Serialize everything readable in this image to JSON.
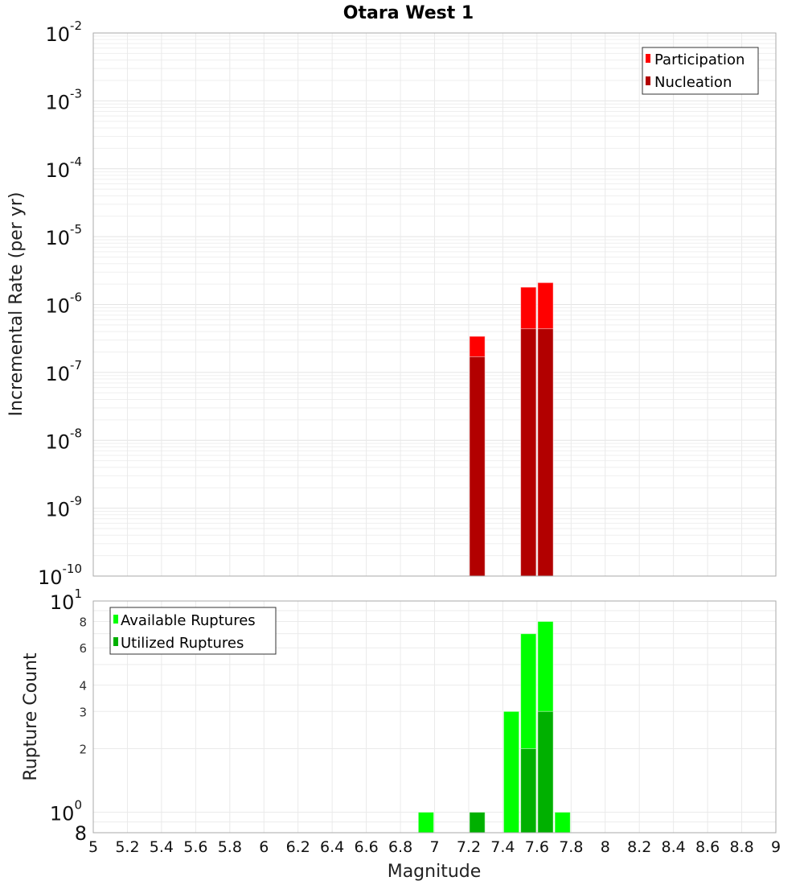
{
  "chart_data": [
    {
      "type": "bar",
      "title": "Otara West 1",
      "xlabel": "Magnitude",
      "ylabel": "Incremental Rate (per yr)",
      "yscale": "log",
      "ylim": [
        1e-10,
        0.01
      ],
      "xlim": [
        5,
        9
      ],
      "grid": true,
      "legend_position": "top-right",
      "bin_width": 0.1,
      "x": [
        7.25,
        7.55,
        7.65
      ],
      "series": [
        {
          "name": "Participation",
          "color": "#ff0000",
          "values": [
            3.4e-07,
            1.8e-06,
            2.1e-06
          ]
        },
        {
          "name": "Nucleation",
          "color": "#b20000",
          "values": [
            1.7e-07,
            4.4e-07,
            4.4e-07
          ]
        }
      ],
      "ytick_labels": [
        {
          "base": "10",
          "exp": "-2",
          "value": 0.01
        },
        {
          "base": "10",
          "exp": "-3",
          "value": 0.001
        },
        {
          "base": "10",
          "exp": "-4",
          "value": 0.0001
        },
        {
          "base": "10",
          "exp": "-5",
          "value": 1e-05
        },
        {
          "base": "10",
          "exp": "-6",
          "value": 1e-06
        },
        {
          "base": "10",
          "exp": "-7",
          "value": 1e-07
        },
        {
          "base": "10",
          "exp": "-8",
          "value": 1e-08
        },
        {
          "base": "10",
          "exp": "-9",
          "value": 1e-09
        },
        {
          "base": "10",
          "exp": "-10",
          "value": 1e-10
        }
      ]
    },
    {
      "type": "bar",
      "title": "",
      "xlabel": "Magnitude",
      "ylabel": "Rupture Count",
      "yscale": "log",
      "ylim": [
        0.8,
        10
      ],
      "xlim": [
        5,
        9
      ],
      "grid": true,
      "legend_position": "top-left",
      "bin_width": 0.1,
      "x": [
        6.95,
        7.25,
        7.45,
        7.55,
        7.65,
        7.75
      ],
      "series": [
        {
          "name": "Available Ruptures",
          "color": "#00ff00",
          "values": [
            1,
            1,
            3,
            7,
            8,
            1
          ]
        },
        {
          "name": "Utilized Ruptures",
          "color": "#00b000",
          "values": [
            0,
            1,
            0,
            2,
            3,
            0
          ]
        }
      ],
      "ytick_labels": [
        {
          "label": "10",
          "exp": "1",
          "value": 10,
          "major": true
        },
        {
          "label": "8",
          "value": 8,
          "major": false
        },
        {
          "label": "6",
          "value": 6,
          "major": false
        },
        {
          "label": "4",
          "value": 4,
          "major": false
        },
        {
          "label": "3",
          "value": 3,
          "major": false
        },
        {
          "label": "2",
          "value": 2,
          "major": false
        },
        {
          "label": "10",
          "exp": "0",
          "value": 1,
          "major": true
        },
        {
          "label": "8",
          "value": 0.8,
          "major": true
        }
      ],
      "xtick_labels": [
        "5",
        "5.2",
        "5.4",
        "5.6",
        "5.8",
        "6",
        "6.2",
        "6.4",
        "6.6",
        "6.8",
        "7",
        "7.2",
        "7.4",
        "7.6",
        "7.8",
        "8",
        "8.2",
        "8.4",
        "8.6",
        "8.8",
        "9"
      ]
    }
  ],
  "labels": {
    "title": "Otara West 1",
    "top_ylabel": "Incremental Rate (per yr)",
    "bottom_ylabel": "Rupture Count",
    "xlabel": "Magnitude",
    "legend_top": [
      "Participation",
      "Nucleation"
    ],
    "legend_bottom": [
      "Available Ruptures",
      "Utilized Ruptures"
    ]
  }
}
